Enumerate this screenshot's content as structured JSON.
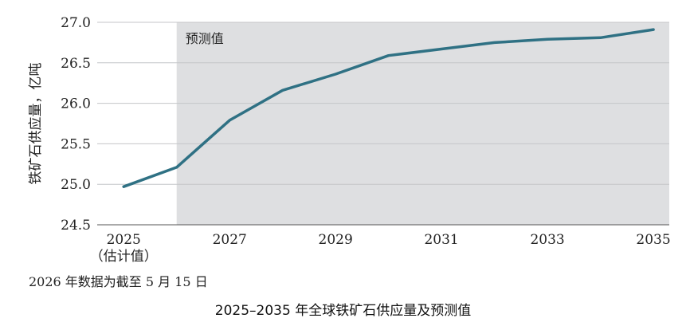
{
  "caption": "2025–2035 年全球铁矿石供应量及预测值",
  "footnote": "2026 年数据为截至 5 月 15 日",
  "chart_data": {
    "type": "line",
    "ylabel": "铁矿石供应量，亿吨",
    "xlabel": "",
    "ylim": [
      24.5,
      27.0
    ],
    "xlim": [
      2024.5,
      2035.3
    ],
    "yticks": [
      "24.5",
      "25.0",
      "25.5",
      "26.0",
      "26.5",
      "27.0"
    ],
    "xticks": [
      {
        "value": 2025,
        "label": "2025",
        "sublabel": "（估计值）"
      },
      {
        "value": 2027,
        "label": "2027"
      },
      {
        "value": 2029,
        "label": "2029"
      },
      {
        "value": 2031,
        "label": "2031"
      },
      {
        "value": 2033,
        "label": "2033"
      },
      {
        "value": 2035,
        "label": "2035"
      }
    ],
    "shaded_region": {
      "from": 2026,
      "to": 2035.3,
      "label": "预测值",
      "color": "#dedfe1"
    },
    "grid": true,
    "series": [
      {
        "color": "#2f7184",
        "x": [
          2025,
          2026,
          2027,
          2028,
          2029,
          2030,
          2031,
          2032,
          2033,
          2034,
          2035
        ],
        "y": [
          24.97,
          25.21,
          25.79,
          26.16,
          26.36,
          26.59,
          26.67,
          26.75,
          26.79,
          26.81,
          26.91
        ]
      }
    ]
  }
}
